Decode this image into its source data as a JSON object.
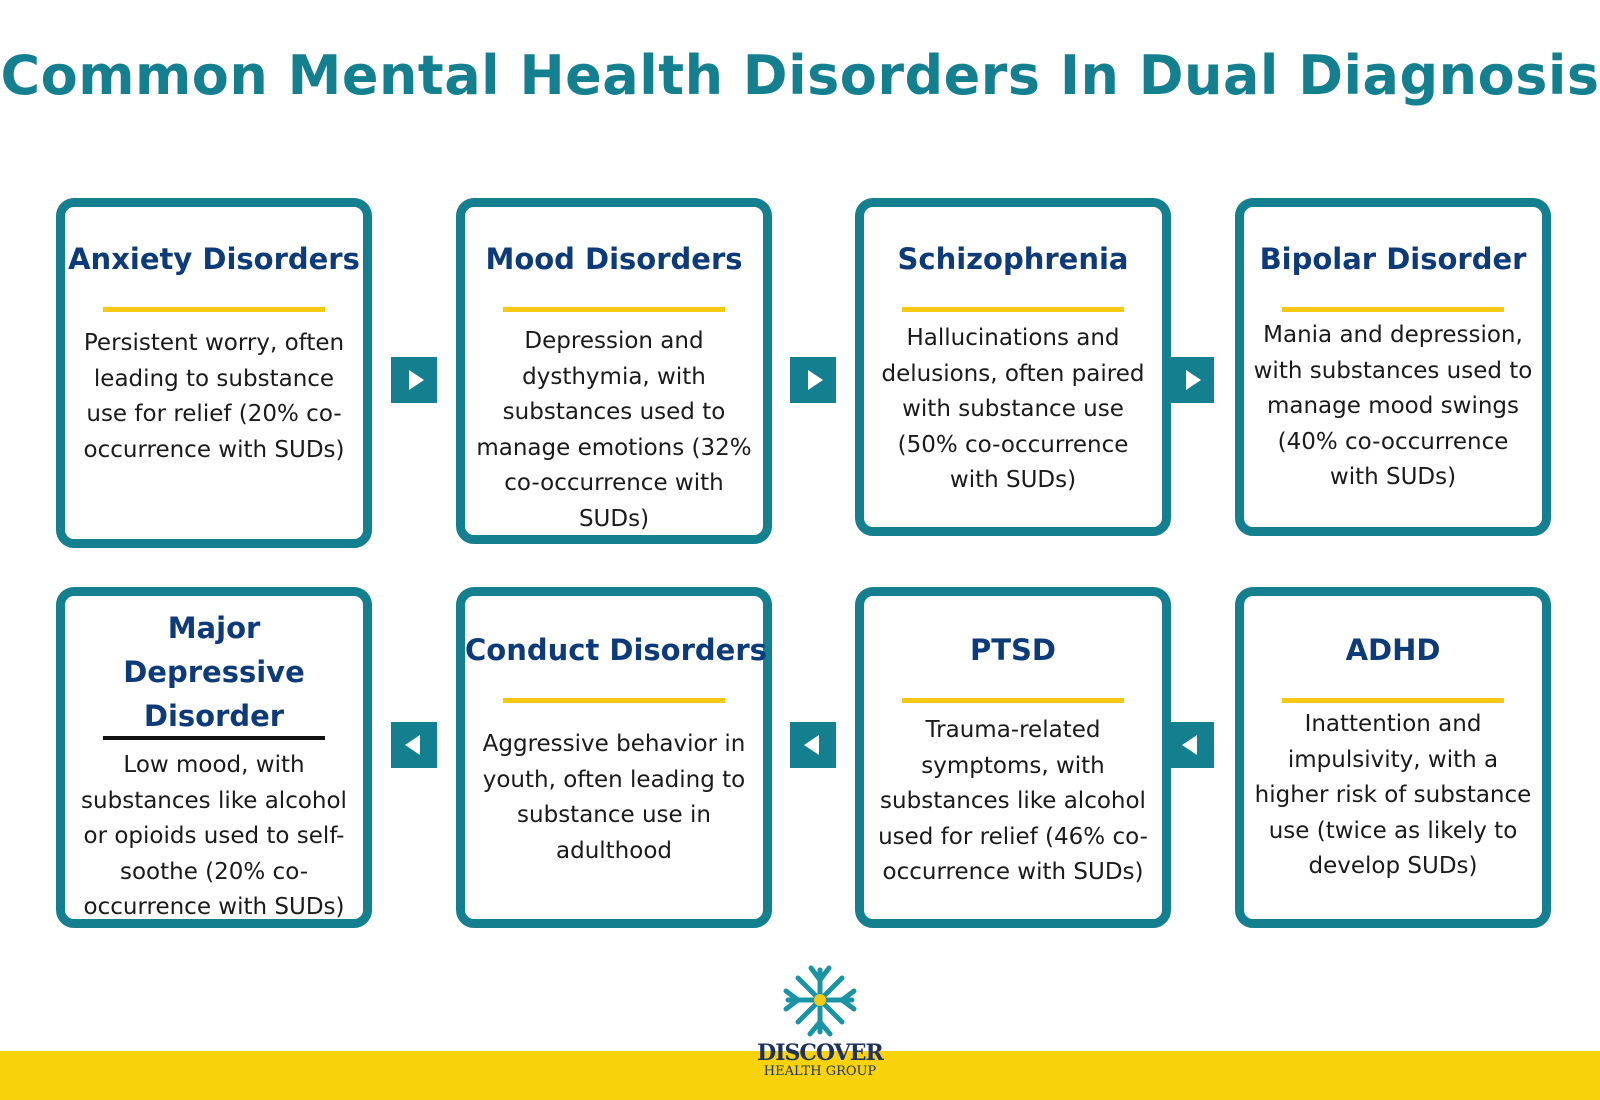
{
  "title": "Common Mental Health Disorders In Dual Diagnosis",
  "colors": {
    "teal": "#137f8f",
    "navy": "#0d3a78",
    "yellow": "#f8d30c"
  },
  "cards": [
    {
      "title": "Anxiety Disorders",
      "text": "Persistent worry, often leading to substance use for relief (20% co-occurrence with SUDs)"
    },
    {
      "title": "Mood Disorders",
      "text": "Depression and dysthymia, with substances used to manage emotions (32% co-occurrence with SUDs)"
    },
    {
      "title": "Schizophrenia",
      "text": "Hallucinations and delusions, often paired with substance use (50% co-occurrence with SUDs)"
    },
    {
      "title": "Bipolar Disorder",
      "text": "Mania and depression, with substances used to manage mood swings (40% co-occurrence with SUDs)"
    },
    {
      "title": "Major Depressive Disorder",
      "text": "Low mood, with substances like alcohol or opioids used to self-soothe (20% co-occurrence with SUDs)"
    },
    {
      "title": "Conduct Disorders",
      "text": "Aggressive behavior in youth, often leading to substance use in adulthood"
    },
    {
      "title": "PTSD",
      "text": "Trauma-related symptoms, with substances like alcohol used for relief (46% co-occurrence with SUDs)"
    },
    {
      "title": "ADHD",
      "text": "Inattention and impulsivity, with a higher risk of substance use (twice as likely to develop SUDs)"
    }
  ],
  "logo": {
    "line1": "DISCOVER",
    "line2": "HEALTH GROUP"
  }
}
